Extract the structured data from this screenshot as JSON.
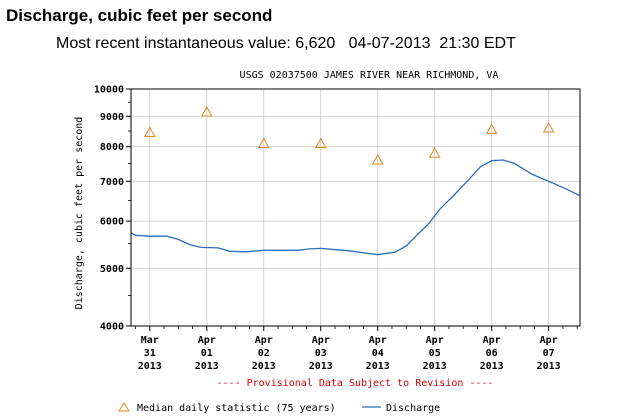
{
  "page": {
    "heading": "Discharge, cubic feet per second",
    "recent_label": "Most recent instantaneous value:",
    "recent_value": "6,620",
    "recent_date": "04-07-2013",
    "recent_time": "21:30 EDT"
  },
  "chart_data": {
    "type": "line",
    "title": "USGS 02037500 JAMES RIVER NEAR RICHMOND, VA",
    "ylabel": "Discharge, cubic feet per second",
    "xlabel": "",
    "yscale": "log",
    "ylim": [
      4000,
      10000
    ],
    "yticks": [
      "10000",
      "9000",
      "8000",
      "7000",
      "6000",
      "5000",
      "4000"
    ],
    "yticks_values": [
      10000,
      9000,
      8000,
      7000,
      6000,
      5000,
      4000
    ],
    "xlim": [
      -0.33,
      7.55
    ],
    "categories": [
      {
        "m": "Mar",
        "d": "31",
        "y": "2013"
      },
      {
        "m": "Apr",
        "d": "01",
        "y": "2013"
      },
      {
        "m": "Apr",
        "d": "02",
        "y": "2013"
      },
      {
        "m": "Apr",
        "d": "03",
        "y": "2013"
      },
      {
        "m": "Apr",
        "d": "04",
        "y": "2013"
      },
      {
        "m": "Apr",
        "d": "05",
        "y": "2013"
      },
      {
        "m": "Apr",
        "d": "06",
        "y": "2013"
      },
      {
        "m": "Apr",
        "d": "07",
        "y": "2013"
      }
    ],
    "provisional_note": "---- Provisional Data Subject to Revision ----",
    "series": [
      {
        "name": "Discharge",
        "color": "#2a6ebd",
        "points": [
          [
            -0.33,
            5730
          ],
          [
            -0.25,
            5680
          ],
          [
            0.0,
            5660
          ],
          [
            0.3,
            5660
          ],
          [
            0.5,
            5590
          ],
          [
            0.7,
            5480
          ],
          [
            0.9,
            5420
          ],
          [
            1.2,
            5410
          ],
          [
            1.4,
            5340
          ],
          [
            1.7,
            5330
          ],
          [
            2.0,
            5360
          ],
          [
            2.4,
            5360
          ],
          [
            2.6,
            5360
          ],
          [
            2.8,
            5390
          ],
          [
            3.0,
            5400
          ],
          [
            3.3,
            5370
          ],
          [
            3.5,
            5350
          ],
          [
            3.8,
            5300
          ],
          [
            4.0,
            5270
          ],
          [
            4.3,
            5320
          ],
          [
            4.5,
            5450
          ],
          [
            4.7,
            5700
          ],
          [
            4.9,
            5950
          ],
          [
            5.1,
            6300
          ],
          [
            5.35,
            6650
          ],
          [
            5.6,
            7050
          ],
          [
            5.8,
            7400
          ],
          [
            6.0,
            7580
          ],
          [
            6.2,
            7600
          ],
          [
            6.4,
            7500
          ],
          [
            6.7,
            7200
          ],
          [
            7.0,
            7000
          ],
          [
            7.3,
            6800
          ],
          [
            7.55,
            6620
          ]
        ]
      },
      {
        "name": "Median daily statistic (75 years)",
        "color": "#e08a1e",
        "points": [
          [
            0.0,
            8450
          ],
          [
            1.0,
            9150
          ],
          [
            2.0,
            8100
          ],
          [
            3.0,
            8100
          ],
          [
            4.0,
            7600
          ],
          [
            5.0,
            7800
          ],
          [
            6.0,
            8550
          ],
          [
            7.0,
            8600
          ]
        ]
      }
    ],
    "legend": [
      {
        "label": "Median daily statistic (75 years)",
        "symbol": "triangle"
      },
      {
        "label": "Discharge",
        "symbol": "line"
      }
    ]
  }
}
